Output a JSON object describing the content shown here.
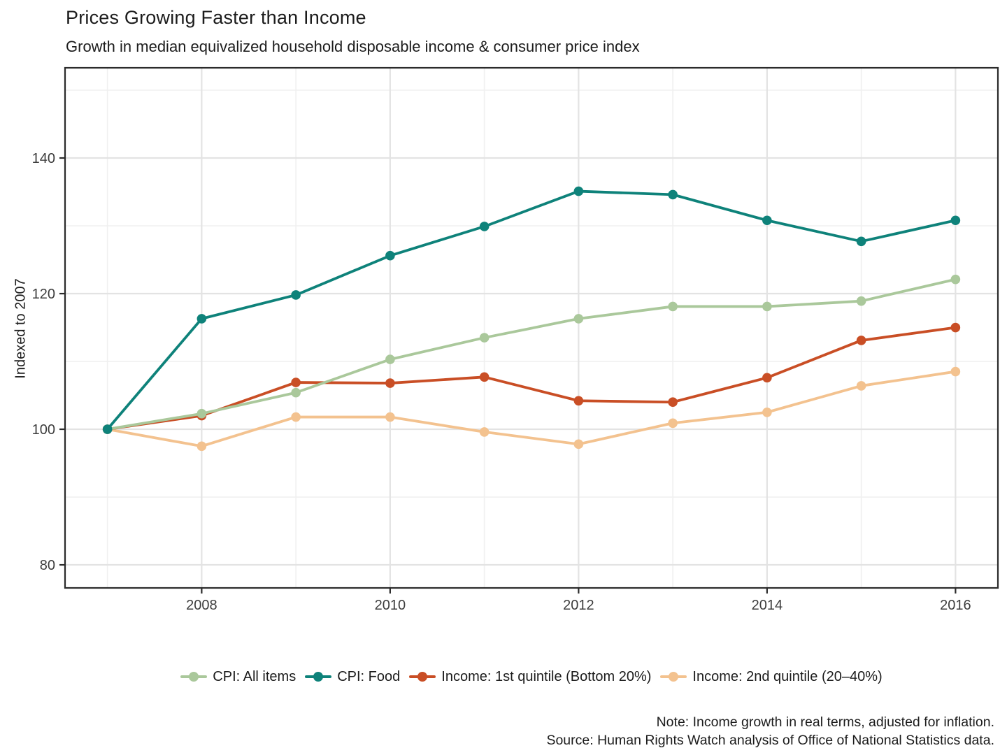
{
  "header": {
    "title": "Prices Growing Faster than Income",
    "subtitle": "Growth in median equivalized household disposable income & consumer price index"
  },
  "chart_data": {
    "type": "line",
    "title": "Prices Growing Faster than Income",
    "subtitle": "Growth in median equivalized household disposable income & consumer price index",
    "xlabel": "",
    "ylabel": "Indexed to 2007",
    "x": [
      2007,
      2008,
      2009,
      2010,
      2011,
      2012,
      2013,
      2014,
      2015,
      2016
    ],
    "series": [
      {
        "name": "CPI: All items",
        "color": "#aac89b",
        "values": [
          100,
          102.3,
          105.4,
          110.3,
          113.5,
          116.3,
          118.1,
          118.1,
          118.9,
          122.1
        ]
      },
      {
        "name": "CPI: Food",
        "color": "#0e827a",
        "values": [
          100,
          116.3,
          119.8,
          125.6,
          129.9,
          135.1,
          134.6,
          130.8,
          127.7,
          130.8
        ]
      },
      {
        "name": "Income: 1st quintile (Bottom 20%)",
        "color": "#c94e25",
        "values": [
          100,
          102.0,
          106.9,
          106.8,
          107.7,
          104.2,
          104.0,
          107.6,
          113.1,
          115.0
        ]
      },
      {
        "name": "Income: 2nd quintile (20–40%)",
        "color": "#f3c28f",
        "values": [
          100,
          97.5,
          101.8,
          101.8,
          99.6,
          97.8,
          100.9,
          102.5,
          106.4,
          108.5
        ]
      }
    ],
    "x_axis": {
      "range": [
        2006.55,
        2016.45
      ],
      "major_ticks": [
        2008,
        2010,
        2012,
        2014,
        2016
      ],
      "minor_ticks": [
        2007,
        2009,
        2011,
        2013,
        2015
      ],
      "tick_labels": [
        "2008",
        "2010",
        "2012",
        "2014",
        "2016"
      ]
    },
    "y_axis": {
      "title": "Indexed to 2007",
      "range": [
        76.6,
        153.3
      ],
      "major_ticks": [
        80,
        100,
        120,
        140
      ],
      "minor_ticks": [
        90,
        110,
        130,
        150
      ],
      "tick_labels": [
        "80",
        "100",
        "120",
        "140"
      ]
    },
    "grid": "major-minor",
    "legend_position": "bottom-center",
    "colors": {
      "major_grid": "#e3e3e3",
      "minor_grid": "#f0f0f0",
      "panel_border": "#2b2b2b",
      "tick_label": "#3d3d3d"
    }
  },
  "footer": {
    "note": "Note: Income growth in real terms, adjusted for inflation.",
    "source": "Source: Human Rights Watch analysis of Office of National Statistics data."
  }
}
